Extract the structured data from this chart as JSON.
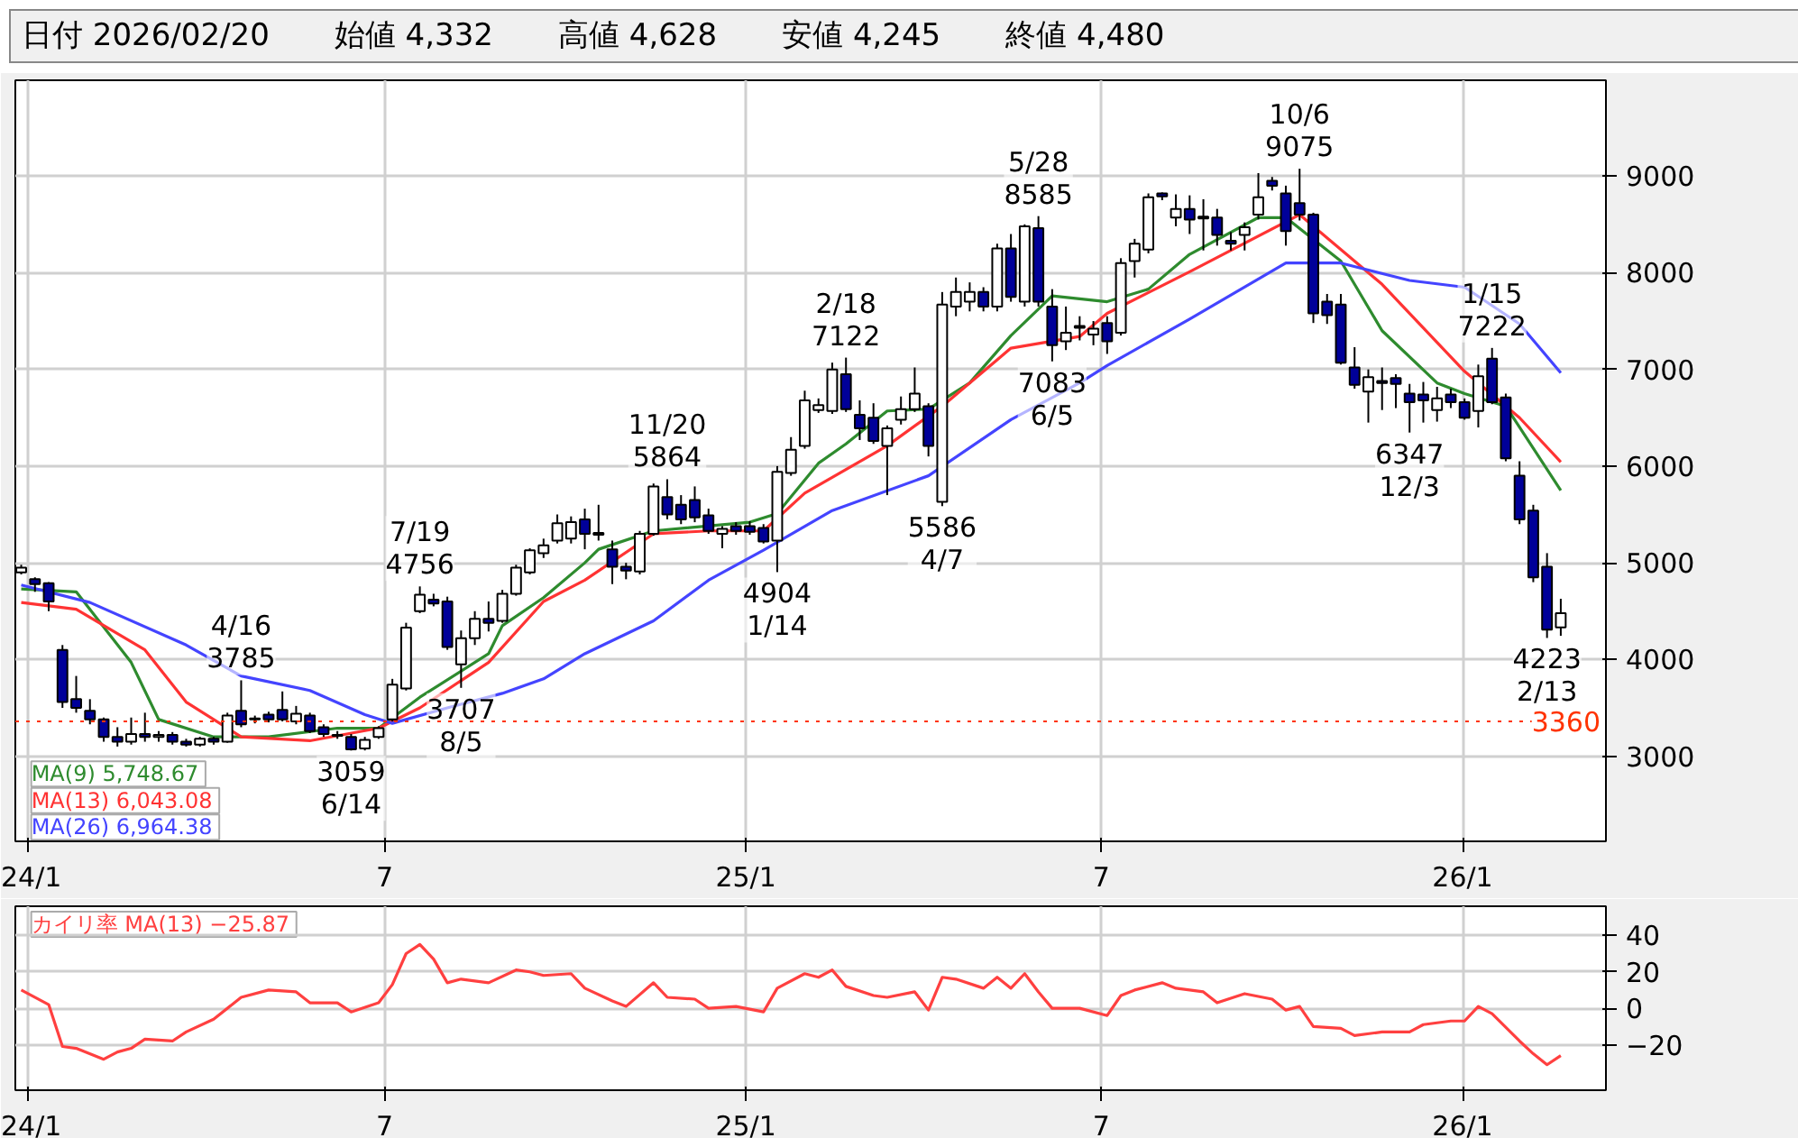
{
  "chart_data": [
    {
      "type": "candlestick",
      "title": "日付 2026/02/20",
      "colors": [
        "#ffffff",
        "#000099",
        "#000099",
        "#000099",
        "#000099",
        "#000099",
        "#000099",
        "#000099",
        "#ffffff",
        "#000099",
        "#ffffff",
        "#000099",
        "#000099",
        "#ffffff",
        "#000099",
        "#ffffff",
        "#000099",
        "#ffffff",
        "#000099",
        "#000099",
        "#ffffff",
        "#000099",
        "#000099",
        "#000099",
        "#000099",
        "#ffffff",
        "#ffffff",
        "#ffffff",
        "#ffffff",
        "#ffffff",
        "#000099",
        "#000099",
        "#ffffff",
        "#ffffff",
        "#000099",
        "#ffffff",
        "#ffffff",
        "#ffffff",
        "#ffffff",
        "#ffffff",
        "#ffffff",
        "#000099",
        "#000099",
        "#000099",
        "#000099",
        "#ffffff",
        "#ffffff",
        "#000099",
        "#000099",
        "#000099",
        "#000099",
        "#ffffff",
        "#000099",
        "#000099",
        "#000099",
        "#ffffff",
        "#ffffff",
        "#ffffff",
        "#ffffff",
        "#ffffff",
        "#000099",
        "#000099",
        "#000099",
        "#ffffff",
        "#ffffff",
        "#ffffff",
        "#000099",
        "#ffffff",
        "#ffffff",
        "#ffffff",
        "#000099",
        "#ffffff",
        "#000099",
        "#ffffff",
        "#000099",
        "#000099",
        "#ffffff",
        "#ffffff",
        "#ffffff",
        "#000099",
        "#ffffff",
        "#ffffff",
        "#ffffff",
        "#000099",
        "#ffffff",
        "#000099",
        "#000099",
        "#000099",
        "#000099",
        "#ffffff",
        "#ffffff",
        "#000099",
        "#000099",
        "#000099",
        "#000099",
        "#000099",
        "#000099",
        "#000099",
        "#ffffff",
        "#000099",
        "#000099",
        "#000099",
        "#000099",
        "#ffffff",
        "#000099",
        "#000099",
        "#ffffff",
        "#000099",
        "#000099",
        "#000099",
        "#000099",
        "#000099",
        "#ffffff"
      ],
      "xlim": [
        "2023-12-26",
        "2026-03-15"
      ],
      "xticks": [
        {
          "value": "2024-01-01",
          "label": "24/1"
        },
        {
          "value": "2024-07-01",
          "label": "7"
        },
        {
          "value": "2025-01-01",
          "label": "25/1"
        },
        {
          "value": "2025-07-01",
          "label": "7"
        },
        {
          "value": "2026-01-01",
          "label": "26/1"
        }
      ],
      "ylim": [
        2120,
        9990
      ],
      "yticks": [
        3000,
        4000,
        5000,
        6000,
        7000,
        8000,
        9000
      ],
      "grid": true,
      "legend": "bottom left",
      "ref_lines": [
        {
          "axis": "y",
          "value": 3360,
          "label": "3360",
          "color": "#ff3300",
          "line_style": "dotted"
        }
      ],
      "x": [
        "2023-12-29",
        "2024-01-05",
        "2024-01-12",
        "2024-01-19",
        "2024-01-26",
        "2024-02-02",
        "2024-02-09",
        "2024-02-16",
        "2024-02-23",
        "2024-03-01",
        "2024-03-08",
        "2024-03-15",
        "2024-03-22",
        "2024-03-29",
        "2024-04-05",
        "2024-04-12",
        "2024-04-19",
        "2024-04-26",
        "2024-05-03",
        "2024-05-10",
        "2024-05-17",
        "2024-05-24",
        "2024-05-31",
        "2024-06-07",
        "2024-06-14",
        "2024-06-21",
        "2024-06-28",
        "2024-07-05",
        "2024-07-12",
        "2024-07-19",
        "2024-07-26",
        "2024-08-02",
        "2024-08-09",
        "2024-08-16",
        "2024-08-23",
        "2024-08-30",
        "2024-09-06",
        "2024-09-13",
        "2024-09-20",
        "2024-09-27",
        "2024-10-04",
        "2024-10-11",
        "2024-10-18",
        "2024-10-25",
        "2024-11-01",
        "2024-11-08",
        "2024-11-15",
        "2024-11-22",
        "2024-11-29",
        "2024-12-06",
        "2024-12-13",
        "2024-12-20",
        "2024-12-27",
        "2025-01-03",
        "2025-01-10",
        "2025-01-17",
        "2025-01-24",
        "2025-01-31",
        "2025-02-07",
        "2025-02-14",
        "2025-02-21",
        "2025-02-28",
        "2025-03-07",
        "2025-03-14",
        "2025-03-21",
        "2025-03-28",
        "2025-04-04",
        "2025-04-11",
        "2025-04-18",
        "2025-04-25",
        "2025-05-02",
        "2025-05-09",
        "2025-05-16",
        "2025-05-23",
        "2025-05-30",
        "2025-06-06",
        "2025-06-13",
        "2025-06-20",
        "2025-06-27",
        "2025-07-04",
        "2025-07-11",
        "2025-07-18",
        "2025-07-25",
        "2025-08-01",
        "2025-08-08",
        "2025-08-15",
        "2025-08-22",
        "2025-08-29",
        "2025-09-05",
        "2025-09-12",
        "2025-09-19",
        "2025-09-26",
        "2025-10-03",
        "2025-10-10",
        "2025-10-17",
        "2025-10-24",
        "2025-10-31",
        "2025-11-07",
        "2025-11-14",
        "2025-11-21",
        "2025-11-28",
        "2025-12-05",
        "2025-12-12",
        "2025-12-19",
        "2025-12-26",
        "2026-01-02",
        "2026-01-09",
        "2026-01-16",
        "2026-01-23",
        "2026-01-30",
        "2026-02-06",
        "2026-02-13",
        "2026-02-20"
      ],
      "ohlc": [
        [
          4900,
          4980,
          4880,
          4950
        ],
        [
          4830,
          4850,
          4700,
          4780
        ],
        [
          4790,
          4800,
          4500,
          4600
        ],
        [
          4100,
          4150,
          3500,
          3560
        ],
        [
          3590,
          3830,
          3450,
          3500
        ],
        [
          3470,
          3590,
          3330,
          3380
        ],
        [
          3380,
          3400,
          3150,
          3200
        ],
        [
          3200,
          3300,
          3100,
          3150
        ],
        [
          3150,
          3400,
          3120,
          3230
        ],
        [
          3230,
          3450,
          3150,
          3200
        ],
        [
          3200,
          3260,
          3150,
          3220
        ],
        [
          3220,
          3250,
          3120,
          3150
        ],
        [
          3150,
          3180,
          3100,
          3120
        ],
        [
          3120,
          3200,
          3100,
          3180
        ],
        [
          3180,
          3200,
          3120,
          3150
        ],
        [
          3150,
          3450,
          3140,
          3420
        ],
        [
          3470,
          3785,
          3300,
          3330
        ],
        [
          3380,
          3420,
          3340,
          3390
        ],
        [
          3430,
          3460,
          3350,
          3380
        ],
        [
          3480,
          3670,
          3360,
          3380
        ],
        [
          3360,
          3520,
          3330,
          3440
        ],
        [
          3420,
          3450,
          3240,
          3260
        ],
        [
          3300,
          3330,
          3200,
          3230
        ],
        [
          3220,
          3260,
          3180,
          3210
        ],
        [
          3200,
          3230,
          3059,
          3070
        ],
        [
          3080,
          3200,
          3060,
          3170
        ],
        [
          3200,
          3310,
          3180,
          3290
        ],
        [
          3380,
          3800,
          3360,
          3740
        ],
        [
          3700,
          4380,
          3680,
          4330
        ],
        [
          4500,
          4756,
          4480,
          4670
        ],
        [
          4620,
          4680,
          4550,
          4580
        ],
        [
          4600,
          4650,
          4100,
          4130
        ],
        [
          3950,
          4300,
          3707,
          4220
        ],
        [
          4220,
          4500,
          4150,
          4420
        ],
        [
          4420,
          4600,
          4290,
          4380
        ],
        [
          4400,
          4720,
          4380,
          4680
        ],
        [
          4680,
          4980,
          4660,
          4950
        ],
        [
          4900,
          5150,
          4880,
          5130
        ],
        [
          5100,
          5250,
          5050,
          5180
        ],
        [
          5230,
          5500,
          5200,
          5410
        ],
        [
          5250,
          5480,
          5200,
          5420
        ],
        [
          5450,
          5560,
          5140,
          5300
        ],
        [
          5310,
          5600,
          5230,
          5290
        ],
        [
          5140,
          5230,
          4780,
          4960
        ],
        [
          4960,
          5000,
          4830,
          4920
        ],
        [
          4910,
          5330,
          4880,
          5300
        ],
        [
          5300,
          5820,
          5280,
          5790
        ],
        [
          5680,
          5864,
          5450,
          5500
        ],
        [
          5600,
          5700,
          5400,
          5450
        ],
        [
          5650,
          5790,
          5420,
          5470
        ],
        [
          5490,
          5560,
          5300,
          5330
        ],
        [
          5300,
          5380,
          5150,
          5350
        ],
        [
          5380,
          5420,
          5290,
          5330
        ],
        [
          5380,
          5430,
          5290,
          5320
        ],
        [
          5360,
          5400,
          5200,
          5220
        ],
        [
          5230,
          6000,
          4904,
          5940
        ],
        [
          5930,
          6300,
          5900,
          6170
        ],
        [
          6210,
          6780,
          6180,
          6680
        ],
        [
          6580,
          6700,
          6550,
          6630
        ],
        [
          6570,
          7070,
          6540,
          7000
        ],
        [
          6950,
          7122,
          6560,
          6590
        ],
        [
          6530,
          6680,
          6270,
          6390
        ],
        [
          6500,
          6650,
          6230,
          6260
        ],
        [
          6210,
          6420,
          5700,
          6390
        ],
        [
          6480,
          6720,
          6430,
          6590
        ],
        [
          6590,
          7020,
          6560,
          6750
        ],
        [
          6620,
          6650,
          6100,
          6210
        ],
        [
          5630,
          7800,
          5586,
          7670
        ],
        [
          7650,
          7950,
          7550,
          7800
        ],
        [
          7700,
          7900,
          7600,
          7800
        ],
        [
          7800,
          7850,
          7600,
          7650
        ],
        [
          7650,
          8300,
          7600,
          8250
        ],
        [
          8250,
          8400,
          7700,
          7750
        ],
        [
          7700,
          8500,
          7650,
          8480
        ],
        [
          8460,
          8585,
          7650,
          7700
        ],
        [
          7650,
          7830,
          7083,
          7250
        ],
        [
          7290,
          7650,
          7200,
          7380
        ],
        [
          7430,
          7550,
          7300,
          7450
        ],
        [
          7360,
          7500,
          7250,
          7420
        ],
        [
          7480,
          7550,
          7160,
          7290
        ],
        [
          7380,
          8150,
          7350,
          8100
        ],
        [
          8120,
          8350,
          7950,
          8300
        ],
        [
          8240,
          8820,
          8200,
          8780
        ],
        [
          8820,
          8830,
          8750,
          8790
        ],
        [
          8570,
          8810,
          8480,
          8660
        ],
        [
          8660,
          8800,
          8400,
          8550
        ],
        [
          8580,
          8760,
          8230,
          8560
        ],
        [
          8570,
          8660,
          8280,
          8390
        ],
        [
          8330,
          8420,
          8230,
          8300
        ],
        [
          8390,
          8520,
          8230,
          8470
        ],
        [
          8600,
          9030,
          8550,
          8780
        ],
        [
          8950,
          8990,
          8850,
          8900
        ],
        [
          8820,
          8900,
          8280,
          8430
        ],
        [
          8720,
          9075,
          8540,
          8600
        ],
        [
          8600,
          8620,
          7480,
          7580
        ],
        [
          7700,
          7780,
          7470,
          7560
        ],
        [
          7670,
          7780,
          7050,
          7070
        ],
        [
          7020,
          7230,
          6800,
          6840
        ],
        [
          6770,
          7000,
          6450,
          6920
        ],
        [
          6880,
          7020,
          6580,
          6860
        ],
        [
          6910,
          6950,
          6600,
          6850
        ],
        [
          6750,
          6850,
          6347,
          6660
        ],
        [
          6740,
          6870,
          6450,
          6680
        ],
        [
          6580,
          6820,
          6460,
          6700
        ],
        [
          6740,
          6800,
          6600,
          6660
        ],
        [
          6660,
          6700,
          6480,
          6500
        ],
        [
          6570,
          7050,
          6400,
          6930
        ],
        [
          7110,
          7222,
          6640,
          6660
        ],
        [
          6710,
          6750,
          6050,
          6080
        ],
        [
          5900,
          6050,
          5400,
          5450
        ],
        [
          5540,
          5600,
          4800,
          4850
        ],
        [
          4960,
          5100,
          4223,
          4310
        ],
        [
          4332,
          4628,
          4245,
          4480
        ]
      ],
      "series": [
        {
          "type": "line",
          "name": "MA(9)  5,748.67",
          "color": "#2e8b2e",
          "x": [
            "2023-12-29",
            "2024-01-26",
            "2024-02-23",
            "2024-03-08",
            "2024-04-05",
            "2024-05-03",
            "2024-06-07",
            "2024-06-28",
            "2024-07-19",
            "2024-08-23",
            "2024-08-30",
            "2024-09-20",
            "2024-10-11",
            "2024-10-18",
            "2024-11-15",
            "2025-01-03",
            "2025-01-17",
            "2025-02-07",
            "2025-02-21",
            "2025-03-14",
            "2025-04-04",
            "2025-04-25",
            "2025-05-16",
            "2025-06-06",
            "2025-07-04",
            "2025-07-25",
            "2025-08-15",
            "2025-09-19",
            "2025-10-03",
            "2025-10-31",
            "2025-11-21",
            "2025-12-19",
            "2026-01-02",
            "2026-01-23",
            "2026-02-20"
          ],
          "values": [
            4730,
            4700,
            3970,
            3380,
            3200,
            3200,
            3290,
            3290,
            3610,
            4060,
            4350,
            4640,
            5000,
            5140,
            5330,
            5420,
            5510,
            6030,
            6230,
            6570,
            6590,
            6860,
            7350,
            7760,
            7700,
            7830,
            8190,
            8570,
            8570,
            8120,
            7400,
            6860,
            6750,
            6620,
            5749
          ]
        },
        {
          "type": "line",
          "name": "MA(13)  6,043.08",
          "color": "#ff3333",
          "x": [
            "2023-12-29",
            "2024-01-26",
            "2024-03-01",
            "2024-03-22",
            "2024-04-19",
            "2024-05-24",
            "2024-06-28",
            "2024-07-19",
            "2024-08-23",
            "2024-09-20",
            "2024-10-11",
            "2024-11-15",
            "2024-12-13",
            "2025-01-10",
            "2025-01-31",
            "2025-03-14",
            "2025-04-11",
            "2025-05-09",
            "2025-05-16",
            "2025-06-20",
            "2025-07-04",
            "2025-08-15",
            "2025-10-10",
            "2025-11-21",
            "2026-01-02",
            "2026-01-30",
            "2026-02-20"
          ],
          "values": [
            4590,
            4520,
            4100,
            3560,
            3200,
            3160,
            3290,
            3500,
            3970,
            4600,
            4820,
            5300,
            5330,
            5330,
            5720,
            6210,
            6620,
            7100,
            7220,
            7340,
            7580,
            8010,
            8600,
            7880,
            6980,
            6500,
            6043
          ]
        },
        {
          "type": "line",
          "name": "MA(26)  6,964.38",
          "color": "#4444ff",
          "x": [
            "2023-12-29",
            "2024-02-02",
            "2024-03-22",
            "2024-04-19",
            "2024-05-24",
            "2024-06-21",
            "2024-07-05",
            "2024-08-02",
            "2024-08-30",
            "2024-09-20",
            "2024-10-11",
            "2024-11-15",
            "2024-12-13",
            "2025-01-10",
            "2025-02-14",
            "2025-04-04",
            "2025-05-16",
            "2025-06-20",
            "2025-07-04",
            "2025-08-15",
            "2025-10-03",
            "2025-10-31",
            "2025-12-05",
            "2026-01-02",
            "2026-01-30",
            "2026-02-20"
          ],
          "values": [
            4770,
            4590,
            4150,
            3830,
            3680,
            3430,
            3340,
            3500,
            3650,
            3800,
            4060,
            4400,
            4820,
            5130,
            5540,
            5900,
            6480,
            6860,
            7040,
            7520,
            8100,
            8100,
            7920,
            7850,
            7470,
            6964
          ]
        }
      ],
      "annotations": [
        "始値 4,332",
        "高値 4,628",
        "安値 4,245",
        "終値 4,480",
        {
          "text": "4/16\n3785",
          "x": "2024-04-19",
          "y": 3785
        },
        {
          "text": "3059\n6/14",
          "x": "2024-06-14",
          "y": 3059
        },
        {
          "text": "7/19\n4756",
          "x": "2024-07-19",
          "y": 4756
        },
        {
          "text": "3707\n8/5",
          "x": "2024-08-09",
          "y": 3707
        },
        {
          "text": "11/20\n5864",
          "x": "2024-11-22",
          "y": 5864
        },
        {
          "text": "4904\n1/14",
          "x": "2025-01-17",
          "y": 4904
        },
        {
          "text": "2/18\n7122",
          "x": "2025-02-21",
          "y": 7122
        },
        {
          "text": "5586\n4/7",
          "x": "2025-04-11",
          "y": 5586
        },
        {
          "text": "5/28\n8585",
          "x": "2025-05-30",
          "y": 8585
        },
        {
          "text": "7083\n6/5",
          "x": "2025-06-06",
          "y": 7083
        },
        {
          "text": "10/6\n9075",
          "x": "2025-10-10",
          "y": 9075
        },
        {
          "text": "6347\n12/3",
          "x": "2025-12-05",
          "y": 6347
        },
        {
          "text": "1/15\n7222",
          "x": "2026-01-16",
          "y": 7222
        },
        {
          "text": "4223\n2/13",
          "x": "2026-02-13",
          "y": 4223
        }
      ]
    },
    {
      "type": "line",
      "xlim": [
        "2023-12-26",
        "2026-03-15"
      ],
      "xticks": [
        {
          "value": "2024-01-01",
          "label": "24/1"
        },
        {
          "value": "2024-07-01",
          "label": "7"
        },
        {
          "value": "2025-01-01",
          "label": "25/1"
        },
        {
          "value": "2025-07-01",
          "label": "7"
        },
        {
          "value": "2026-01-01",
          "label": "26/1"
        }
      ],
      "ylim": [
        -45,
        56
      ],
      "yticks": [
        -20,
        0,
        20,
        40
      ],
      "grid": true,
      "legend": "top left",
      "series": [
        {
          "name": "カイリ率 MA(13)  −25.87",
          "color": "#ff4040",
          "x": [
            "2023-12-29",
            "2024-01-12",
            "2024-01-19",
            "2024-01-26",
            "2024-02-09",
            "2024-02-16",
            "2024-02-23",
            "2024-03-01",
            "2024-03-15",
            "2024-03-22",
            "2024-04-05",
            "2024-04-19",
            "2024-05-03",
            "2024-05-17",
            "2024-05-24",
            "2024-06-07",
            "2024-06-14",
            "2024-06-28",
            "2024-07-05",
            "2024-07-12",
            "2024-07-19",
            "2024-07-26",
            "2024-08-02",
            "2024-08-09",
            "2024-08-23",
            "2024-09-06",
            "2024-09-13",
            "2024-09-20",
            "2024-10-04",
            "2024-10-11",
            "2024-10-25",
            "2024-11-01",
            "2024-11-15",
            "2024-11-22",
            "2024-12-06",
            "2024-12-13",
            "2024-12-27",
            "2025-01-10",
            "2025-01-17",
            "2025-01-31",
            "2025-02-07",
            "2025-02-14",
            "2025-02-21",
            "2025-03-07",
            "2025-03-14",
            "2025-03-28",
            "2025-04-04",
            "2025-04-11",
            "2025-04-18",
            "2025-05-02",
            "2025-05-09",
            "2025-05-16",
            "2025-05-23",
            "2025-05-30",
            "2025-06-06",
            "2025-06-20",
            "2025-07-04",
            "2025-07-11",
            "2025-07-18",
            "2025-08-01",
            "2025-08-08",
            "2025-08-22",
            "2025-08-29",
            "2025-09-12",
            "2025-09-26",
            "2025-10-03",
            "2025-10-10",
            "2025-10-17",
            "2025-10-31",
            "2025-11-07",
            "2025-11-21",
            "2025-12-05",
            "2025-12-12",
            "2025-12-26",
            "2026-01-02",
            "2026-01-09",
            "2026-01-16",
            "2026-01-30",
            "2026-02-06",
            "2026-02-13",
            "2026-02-20"
          ],
          "values": [
            10,
            2,
            -21,
            -22,
            -28,
            -24,
            -22,
            -17,
            -18,
            -13,
            -6,
            6,
            10,
            9,
            3,
            3,
            -2,
            3,
            13,
            30,
            35,
            27,
            14,
            16,
            14,
            21,
            20,
            18,
            19,
            11,
            4,
            1,
            14,
            6,
            5,
            0,
            1,
            -2,
            11,
            19,
            17,
            21,
            12,
            7,
            6,
            9,
            -1,
            17,
            16,
            11,
            17,
            11,
            19,
            9,
            0,
            0,
            -4,
            7,
            10,
            14,
            11,
            9,
            3,
            8,
            5,
            -1,
            1,
            -10,
            -11,
            -15,
            -13,
            -13,
            -9,
            -7,
            -7,
            1,
            -3,
            -18,
            -25,
            -31,
            -26
          ]
        }
      ]
    }
  ]
}
